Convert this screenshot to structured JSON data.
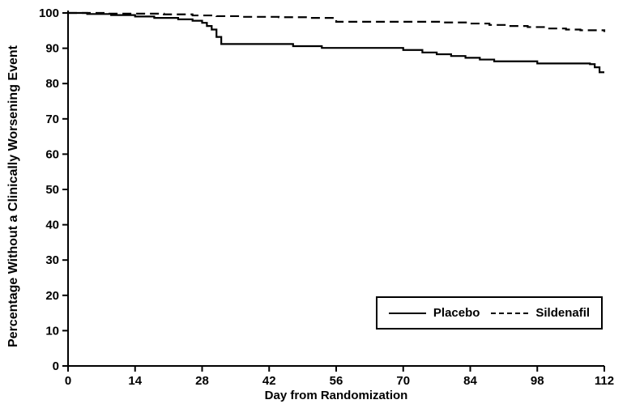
{
  "figure": {
    "background": "#ffffff",
    "axis_color": "#000000"
  },
  "chart_data": {
    "type": "line",
    "subtype": "kaplan-meier-step",
    "title": "",
    "xlabel": "Day from Randomization",
    "ylabel": "Percentage Without a Clinically Worsening Event",
    "xlim": [
      0,
      112
    ],
    "ylim": [
      0,
      100
    ],
    "xticks": [
      0,
      14,
      28,
      42,
      56,
      70,
      84,
      98,
      112
    ],
    "yticks": [
      0,
      10,
      20,
      30,
      40,
      50,
      60,
      70,
      80,
      90,
      100
    ],
    "grid": false,
    "legend": {
      "position": "lower-right",
      "border": true
    },
    "series": [
      {
        "name": "Placebo",
        "style": "solid",
        "color": "#000000",
        "points": [
          [
            0,
            100
          ],
          [
            4,
            99.7
          ],
          [
            9,
            99.4
          ],
          [
            14,
            99.0
          ],
          [
            18,
            98.6
          ],
          [
            23,
            98.2
          ],
          [
            26,
            97.8
          ],
          [
            28,
            97.2
          ],
          [
            29,
            96.3
          ],
          [
            30,
            95.3
          ],
          [
            31,
            93.2
          ],
          [
            32,
            91.2
          ],
          [
            47,
            90.6
          ],
          [
            53,
            90.1
          ],
          [
            70,
            89.5
          ],
          [
            74,
            88.8
          ],
          [
            77,
            88.3
          ],
          [
            80,
            87.8
          ],
          [
            83,
            87.3
          ],
          [
            86,
            86.8
          ],
          [
            89,
            86.3
          ],
          [
            98,
            85.7
          ],
          [
            109,
            85.5
          ],
          [
            110,
            84.6
          ],
          [
            111,
            83.2
          ],
          [
            112,
            83.2
          ]
        ]
      },
      {
        "name": "Sildenafil",
        "style": "dashed",
        "color": "#000000",
        "points": [
          [
            0,
            100
          ],
          [
            8,
            99.8
          ],
          [
            20,
            99.6
          ],
          [
            26,
            99.3
          ],
          [
            31,
            99.1
          ],
          [
            36,
            98.9
          ],
          [
            44,
            98.8
          ],
          [
            50,
            98.6
          ],
          [
            56,
            97.5
          ],
          [
            78,
            97.3
          ],
          [
            84,
            97.0
          ],
          [
            88,
            96.6
          ],
          [
            92,
            96.3
          ],
          [
            96,
            96.0
          ],
          [
            100,
            95.6
          ],
          [
            104,
            95.3
          ],
          [
            107,
            95.1
          ],
          [
            112,
            94.6
          ]
        ]
      }
    ]
  }
}
